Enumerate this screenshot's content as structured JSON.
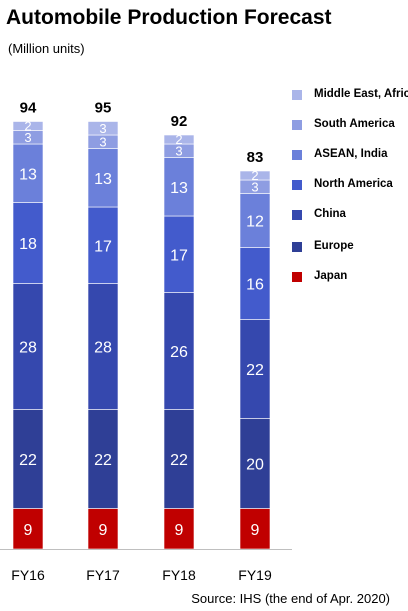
{
  "chart_data": {
    "type": "bar",
    "stacked": true,
    "title": "Automobile Production Forecast",
    "subtitle": "(Million units)",
    "categories": [
      "FY16",
      "FY17",
      "FY18",
      "FY19"
    ],
    "totals": [
      94,
      95,
      92,
      83
    ],
    "series": [
      {
        "name": "Japan",
        "color": "#c00000",
        "values": [
          9,
          9,
          9,
          9
        ]
      },
      {
        "name": "Europe",
        "color": "#2f3f96",
        "values": [
          22,
          22,
          22,
          20
        ]
      },
      {
        "name": "China",
        "color": "#3548ae",
        "values": [
          28,
          28,
          26,
          22
        ]
      },
      {
        "name": "North America",
        "color": "#435bcc",
        "values": [
          18,
          17,
          17,
          16
        ]
      },
      {
        "name": "ASEAN, India",
        "color": "#6b80da",
        "values": [
          13,
          13,
          13,
          12
        ]
      },
      {
        "name": "South America",
        "color": "#8e9de2",
        "values": [
          3,
          3,
          3,
          3
        ]
      },
      {
        "name": "Middle East, Africa",
        "color": "#aab5e9",
        "values": [
          2,
          3,
          2,
          2
        ]
      }
    ],
    "legend_position": "right",
    "grid": false,
    "ylim": [
      0,
      100
    ],
    "source": "Source: IHS (the end of Apr. 2020)"
  }
}
